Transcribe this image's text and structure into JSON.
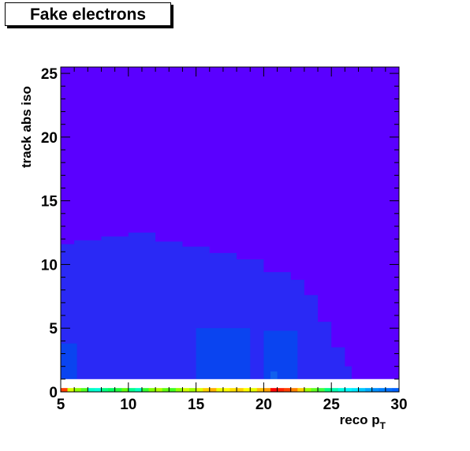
{
  "chart_data": {
    "type": "heatmap",
    "title": "Fake electrons",
    "xlabel": "reco p",
    "xlabel_subscript": "T",
    "ylabel": "track abs iso",
    "xlim": [
      5,
      30
    ],
    "ylim": [
      0,
      25.5
    ],
    "x_ticks": [
      5,
      10,
      15,
      20,
      25,
      30
    ],
    "y_ticks": [
      0,
      5,
      10,
      15,
      20,
      25
    ],
    "grid": false,
    "legend": "none",
    "colors": {
      "background_bin": "#5a00ff",
      "medium_bin": "#2a29f5",
      "high_bin": "#0a44f0",
      "peak_bin": "#1060ee"
    },
    "regions": [
      {
        "level": "low",
        "x": [
          5,
          30
        ],
        "y": [
          1,
          25.5
        ]
      },
      {
        "level": "medium",
        "x_boundary": [
          5,
          6,
          8,
          10,
          12,
          14,
          16,
          18,
          20,
          22,
          23,
          24,
          25,
          26,
          26.5
        ],
        "y_boundary": [
          11.6,
          11.9,
          12.2,
          12.5,
          11.8,
          11.4,
          10.9,
          10.4,
          9.4,
          8.8,
          7.6,
          5.5,
          3.5,
          2.0,
          1.0
        ]
      },
      {
        "level": "high",
        "x": [
          15,
          19
        ],
        "y": [
          1,
          5
        ]
      },
      {
        "level": "high",
        "x": [
          5,
          6.2
        ],
        "y": [
          1,
          3.8
        ]
      },
      {
        "level": "high",
        "x": [
          20,
          22.5
        ],
        "y": [
          1,
          4.8
        ]
      }
    ],
    "first_row_bins": [
      {
        "x": 5,
        "color": "#ff4000"
      },
      {
        "x": 5.5,
        "color": "#d8ff00"
      },
      {
        "x": 6,
        "color": "#90ff00"
      },
      {
        "x": 6.5,
        "color": "#50ff20"
      },
      {
        "x": 7,
        "color": "#00ffc8"
      },
      {
        "x": 7.5,
        "color": "#00ffd8"
      },
      {
        "x": 8,
        "color": "#00ff80"
      },
      {
        "x": 8.5,
        "color": "#00ff60"
      },
      {
        "x": 9,
        "color": "#20ff40"
      },
      {
        "x": 9.5,
        "color": "#60ff10"
      },
      {
        "x": 10,
        "color": "#00ff90"
      },
      {
        "x": 10.5,
        "color": "#00ffc0"
      },
      {
        "x": 11,
        "color": "#30ff30"
      },
      {
        "x": 11.5,
        "color": "#80ff00"
      },
      {
        "x": 12,
        "color": "#b0ff00"
      },
      {
        "x": 12.5,
        "color": "#60ff10"
      },
      {
        "x": 13,
        "color": "#40ff20"
      },
      {
        "x": 13.5,
        "color": "#90ff00"
      },
      {
        "x": 14,
        "color": "#d0ff00"
      },
      {
        "x": 14.5,
        "color": "#a0ff00"
      },
      {
        "x": 15,
        "color": "#e0ff00"
      },
      {
        "x": 15.5,
        "color": "#ffd000"
      },
      {
        "x": 16,
        "color": "#ffb000"
      },
      {
        "x": 16.5,
        "color": "#f0ff00"
      },
      {
        "x": 17,
        "color": "#ffff00"
      },
      {
        "x": 17.5,
        "color": "#ffe000"
      },
      {
        "x": 18,
        "color": "#ffd000"
      },
      {
        "x": 18.5,
        "color": "#ffff00"
      },
      {
        "x": 19,
        "color": "#e8ff00"
      },
      {
        "x": 19.5,
        "color": "#ffc000"
      },
      {
        "x": 20,
        "color": "#ffa000"
      },
      {
        "x": 20.5,
        "color": "#ff0000"
      },
      {
        "x": 21,
        "color": "#ff2000"
      },
      {
        "x": 21.5,
        "color": "#ff4000"
      },
      {
        "x": 22,
        "color": "#ff8000"
      },
      {
        "x": 22.5,
        "color": "#ffd000"
      },
      {
        "x": 23,
        "color": "#a0ff00"
      },
      {
        "x": 23.5,
        "color": "#60ff20"
      },
      {
        "x": 24,
        "color": "#40ff40"
      },
      {
        "x": 24.5,
        "color": "#00ff80"
      },
      {
        "x": 25,
        "color": "#00ffb0"
      },
      {
        "x": 25.5,
        "color": "#00ffe0"
      },
      {
        "x": 26,
        "color": "#00f8ff"
      },
      {
        "x": 26.5,
        "color": "#00e8ff"
      },
      {
        "x": 27,
        "color": "#00c8ff"
      },
      {
        "x": 27.5,
        "color": "#00a8ff"
      },
      {
        "x": 28,
        "color": "#0090ff"
      },
      {
        "x": 28.5,
        "color": "#0080ff"
      },
      {
        "x": 29,
        "color": "#0070ff"
      },
      {
        "x": 29.5,
        "color": "#0060ff"
      }
    ],
    "blank_row": {
      "y": [
        0.3,
        1.0
      ]
    }
  }
}
